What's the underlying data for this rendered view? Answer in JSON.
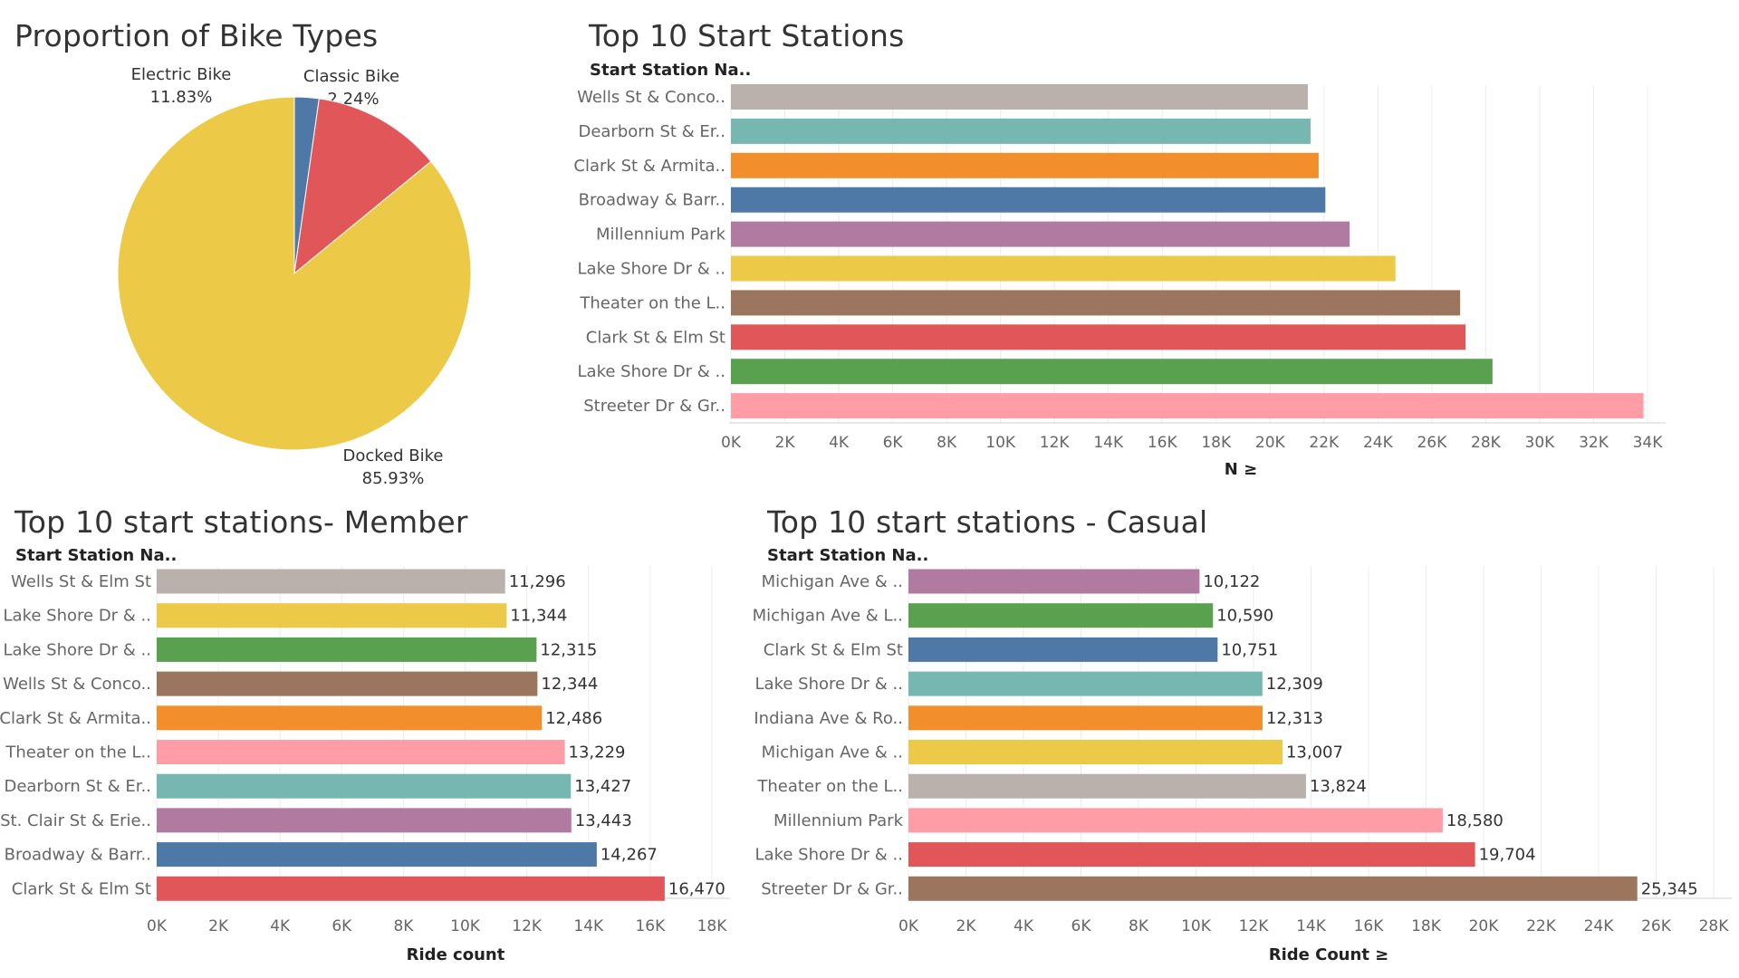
{
  "colors": {
    "pie": [
      "#4E79A7",
      "#E15759",
      "#EDC948"
    ],
    "startStations": [
      "#BAB0AC",
      "#76B7B2",
      "#F28E2B",
      "#4E79A7",
      "#B07AA1",
      "#EDC948",
      "#9C755F",
      "#E15759",
      "#59A14F",
      "#FF9DA7"
    ],
    "member": [
      "#BAB0AC",
      "#EDC948",
      "#59A14F",
      "#9C755F",
      "#F28E2B",
      "#FF9DA7",
      "#76B7B2",
      "#B07AA1",
      "#4E79A7",
      "#E15759"
    ],
    "casual": [
      "#B07AA1",
      "#59A14F",
      "#4E79A7",
      "#76B7B2",
      "#F28E2B",
      "#EDC948",
      "#BAB0AC",
      "#FF9DA7",
      "#E15759",
      "#9C755F"
    ]
  },
  "chart_data": [
    {
      "id": "pie",
      "type": "pie",
      "title": "Proportion of Bike Types",
      "slices": [
        {
          "label": "Classic Bike",
          "value": 2.24,
          "pct_label": "2.24%"
        },
        {
          "label": "Electric Bike",
          "value": 11.83,
          "pct_label": "11.83%"
        },
        {
          "label": "Docked Bike",
          "value": 85.93,
          "pct_label": "85.93%"
        }
      ]
    },
    {
      "id": "start",
      "type": "bar",
      "title": "Top 10 Start Stations",
      "row_header": "Start Station Na..",
      "xlabel": "N ≥",
      "xlim": [
        0,
        34000
      ],
      "xticks": [
        "0K",
        "2K",
        "4K",
        "6K",
        "8K",
        "10K",
        "12K",
        "14K",
        "16K",
        "18K",
        "20K",
        "22K",
        "24K",
        "26K",
        "28K",
        "30K",
        "32K",
        "34K"
      ],
      "categories": [
        "Wells St & Conco..",
        "Dearborn St & Er..",
        "Clark St & Armita..",
        "Broadway & Barr..",
        "Millennium Park",
        "Lake Shore Dr & ..",
        "Theater on the L..",
        "Clark St & Elm St",
        "Lake Shore Dr & ..",
        "Streeter Dr & Gr.."
      ],
      "values": [
        21400,
        21500,
        21800,
        22050,
        22950,
        24650,
        27050,
        27250,
        28250,
        33850
      ]
    },
    {
      "id": "member",
      "type": "bar",
      "title": "Top 10 start stations- Member",
      "row_header": "Start Station Na..",
      "xlabel": "Ride count",
      "xlim": [
        0,
        18000
      ],
      "xticks": [
        "0K",
        "2K",
        "4K",
        "6K",
        "8K",
        "10K",
        "12K",
        "14K",
        "16K",
        "18K"
      ],
      "categories": [
        "Wells St & Elm St",
        "Lake Shore Dr & ..",
        "Lake Shore Dr & ..",
        "Wells St & Conco..",
        "Clark St & Armita..",
        "Theater on the L..",
        "Dearborn St & Er..",
        "St. Clair St & Erie..",
        "Broadway & Barr..",
        "Clark St & Elm St"
      ],
      "values": [
        11296,
        11344,
        12315,
        12344,
        12486,
        13229,
        13427,
        13443,
        14267,
        16470
      ],
      "value_labels": [
        "11,296",
        "11,344",
        "12,315",
        "12,344",
        "12,486",
        "13,229",
        "13,427",
        "13,443",
        "14,267",
        "16,470"
      ]
    },
    {
      "id": "casual",
      "type": "bar",
      "title": "Top 10 start stations - Casual",
      "row_header": "Start Station Na..",
      "xlabel": "Ride Count ≥",
      "xlim": [
        0,
        28000
      ],
      "xticks": [
        "0K",
        "2K",
        "4K",
        "6K",
        "8K",
        "10K",
        "12K",
        "14K",
        "16K",
        "18K",
        "20K",
        "22K",
        "24K",
        "26K",
        "28K"
      ],
      "categories": [
        "Michigan Ave & ..",
        "Michigan Ave & L..",
        "Clark St & Elm St",
        "Lake Shore Dr & ..",
        "Indiana Ave & Ro..",
        "Michigan Ave & ..",
        "Theater on the L..",
        "Millennium Park",
        "Lake Shore Dr & ..",
        "Streeter Dr & Gr.."
      ],
      "values": [
        10122,
        10590,
        10751,
        12309,
        12313,
        13007,
        13824,
        18580,
        19704,
        25345
      ],
      "value_labels": [
        "10,122",
        "10,590",
        "10,751",
        "12,309",
        "12,313",
        "13,007",
        "13,824",
        "18,580",
        "19,704",
        "25,345"
      ]
    }
  ]
}
